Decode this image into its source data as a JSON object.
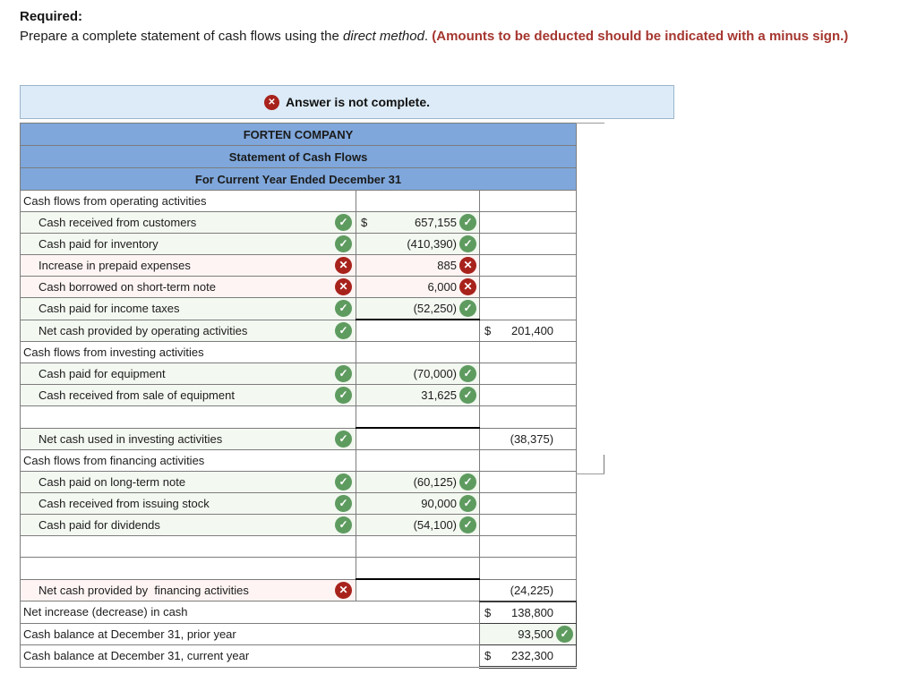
{
  "instructions": {
    "heading": "Required:",
    "body_prefix": "Prepare a complete statement of cash flows using the ",
    "body_italic": "direct method",
    "body_period": ". ",
    "body_warning": "(Amounts to be deducted should be indicated with a minus sign.)"
  },
  "banner": {
    "icon": "x-circle-icon",
    "icon_glyph": "✕",
    "text": "Answer is not complete."
  },
  "icons": {
    "correct": "✓",
    "incorrect": "✕"
  },
  "colors": {
    "header_blue": "#7fa7db",
    "banner_blue": "#dcebf7",
    "correct_green": "#5e9b5f",
    "incorrect_red": "#a8221c",
    "warning_red": "#a5362f",
    "tint_green": "#f3f8f1",
    "tint_red": "#fdf4f3"
  },
  "statement": {
    "title_lines": [
      "FORTEN COMPANY",
      "Statement of Cash Flows",
      "For Current Year Ended December 31"
    ],
    "rows": [
      {
        "kind": "section",
        "label": "Cash flows from operating activities"
      },
      {
        "kind": "item",
        "label": "Cash received from customers",
        "tint": "green",
        "label_status": "correct",
        "amount_dollar": true,
        "amount": "657,155",
        "amount_status": "correct"
      },
      {
        "kind": "item",
        "label": "Cash paid for inventory",
        "tint": "green",
        "label_status": "correct",
        "amount": "(410,390)",
        "amount_status": "correct"
      },
      {
        "kind": "item",
        "label": "Increase in prepaid expenses",
        "tint": "red",
        "label_status": "incorrect",
        "amount": "885",
        "amount_status": "incorrect"
      },
      {
        "kind": "item",
        "label": "Cash borrowed on short-term note",
        "tint": "red",
        "label_status": "incorrect",
        "amount": "6,000",
        "amount_status": "incorrect"
      },
      {
        "kind": "item",
        "label": "Cash paid for income taxes",
        "tint": "green",
        "label_status": "correct",
        "amount": "(52,250)",
        "amount_status": "correct"
      },
      {
        "kind": "net",
        "label": "Net cash provided by operating activities",
        "tint": "green",
        "label_status": "correct",
        "col2_rule": true,
        "total_dollar": true,
        "total": "201,400"
      },
      {
        "kind": "section",
        "label": "Cash flows from investing activities"
      },
      {
        "kind": "item",
        "label": "Cash paid for equipment",
        "tint": "green",
        "label_status": "correct",
        "amount": "(70,000)",
        "amount_status": "correct"
      },
      {
        "kind": "item",
        "label": "Cash received from sale of equipment",
        "tint": "green",
        "label_status": "correct",
        "amount": "31,625",
        "amount_status": "correct"
      },
      {
        "kind": "empty",
        "label": ""
      },
      {
        "kind": "net",
        "label": "Net cash used in investing activities",
        "tint": "green",
        "label_status": "correct",
        "col2_rule": true,
        "total": "(38,375)"
      },
      {
        "kind": "section",
        "label": "Cash flows from financing activities"
      },
      {
        "kind": "item",
        "label": "Cash paid on long-term note",
        "tint": "green",
        "label_status": "correct",
        "amount": "(60,125)",
        "amount_status": "correct"
      },
      {
        "kind": "item",
        "label": "Cash received from issuing stock",
        "tint": "green",
        "label_status": "correct",
        "amount": "90,000",
        "amount_status": "correct"
      },
      {
        "kind": "item",
        "label": "Cash paid for dividends",
        "tint": "green",
        "label_status": "correct",
        "amount": "(54,100)",
        "amount_status": "correct"
      },
      {
        "kind": "empty",
        "label": ""
      },
      {
        "kind": "empty",
        "label": ""
      },
      {
        "kind": "net",
        "label": "Net cash provided by  financing activities",
        "tint": "red",
        "label_status": "incorrect",
        "col2_rule": true,
        "total": "(24,225)"
      },
      {
        "kind": "summary",
        "label": "Net increase (decrease) in cash",
        "total_dollar": true,
        "total": "138,800",
        "col3_rule": true
      },
      {
        "kind": "summary",
        "label": "Cash balance at December 31, prior year",
        "total": "93,500",
        "total_status": "correct",
        "total_tint": "green"
      },
      {
        "kind": "summary",
        "label": "Cash balance at December 31, current year",
        "total_dollar": true,
        "total": "232,300",
        "col3_double": true
      }
    ]
  }
}
